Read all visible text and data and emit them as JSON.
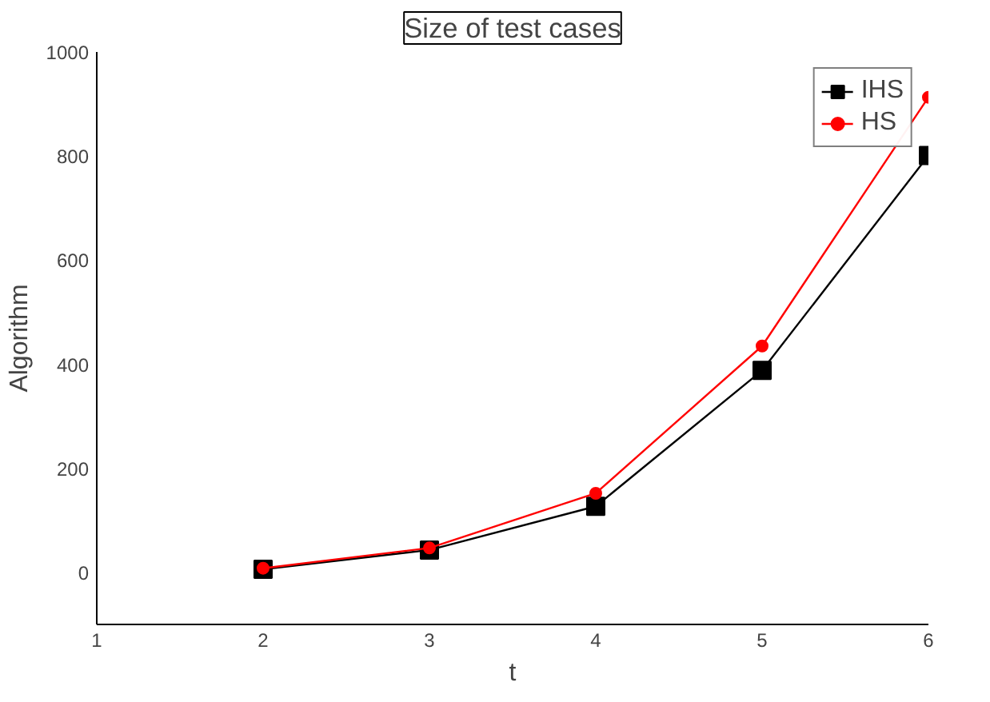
{
  "chart_data": {
    "type": "line",
    "title": "Size of test cases",
    "xlabel": "t",
    "ylabel": "Algorithm",
    "x": [
      2,
      3,
      4,
      5,
      6
    ],
    "series": [
      {
        "name": "IHS",
        "color": "#000000",
        "marker": "square",
        "values": [
          6,
          43,
          127,
          388,
          801
        ]
      },
      {
        "name": "HS",
        "color": "#ff0000",
        "marker": "circle",
        "values": [
          8,
          47,
          152,
          435,
          913
        ]
      }
    ],
    "xlim": [
      1,
      6
    ],
    "xticks": [
      1,
      2,
      3,
      4,
      5,
      6
    ],
    "ylim": [
      -100,
      1000
    ],
    "yticks": [
      0,
      200,
      400,
      600,
      800,
      1000
    ],
    "grid": false,
    "legend": "top right",
    "line_style": "solid"
  }
}
